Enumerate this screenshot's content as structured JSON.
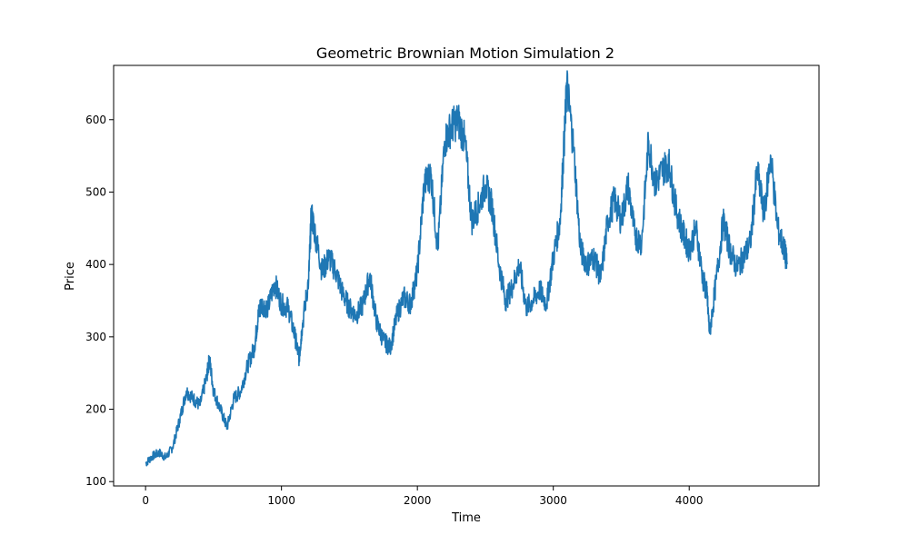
{
  "chart_data": {
    "type": "line",
    "title": "Geometric Brownian Motion Simulation 2",
    "xlabel": "Time",
    "ylabel": "Price",
    "xlim": [
      -235,
      4955
    ],
    "ylim": [
      94,
      675
    ],
    "xticks": [
      0,
      1000,
      2000,
      3000,
      4000
    ],
    "yticks": [
      100,
      200,
      300,
      400,
      500,
      600
    ],
    "grid": false,
    "series": [
      {
        "color": "#1f77b4",
        "x": [
          0,
          50,
          100,
          150,
          200,
          250,
          300,
          350,
          400,
          450,
          470,
          500,
          550,
          600,
          650,
          700,
          750,
          800,
          830,
          850,
          900,
          950,
          1000,
          1050,
          1100,
          1130,
          1150,
          1200,
          1220,
          1250,
          1300,
          1350,
          1400,
          1450,
          1500,
          1550,
          1600,
          1650,
          1700,
          1750,
          1800,
          1850,
          1900,
          1950,
          2000,
          2050,
          2100,
          2150,
          2200,
          2250,
          2300,
          2350,
          2400,
          2450,
          2500,
          2550,
          2600,
          2650,
          2700,
          2750,
          2800,
          2850,
          2900,
          2950,
          3000,
          3050,
          3080,
          3100,
          3150,
          3200,
          3250,
          3300,
          3350,
          3400,
          3450,
          3500,
          3550,
          3600,
          3650,
          3700,
          3750,
          3800,
          3850,
          3900,
          3950,
          4000,
          4050,
          4100,
          4130,
          4150,
          4200,
          4250,
          4300,
          4350,
          4400,
          4450,
          4500,
          4550,
          4600,
          4650,
          4700,
          4720
        ],
        "y": [
          125,
          135,
          140,
          133,
          148,
          185,
          225,
          215,
          205,
          245,
          270,
          225,
          200,
          175,
          215,
          225,
          260,
          285,
          330,
          345,
          340,
          375,
          345,
          340,
          300,
          270,
          310,
          380,
          470,
          440,
          390,
          410,
          390,
          360,
          340,
          330,
          345,
          385,
          320,
          295,
          285,
          330,
          355,
          345,
          390,
          510,
          525,
          420,
          570,
          590,
          600,
          570,
          460,
          480,
          510,
          480,
          400,
          350,
          370,
          400,
          340,
          350,
          365,
          345,
          410,
          460,
          570,
          650,
          560,
          420,
          400,
          410,
          380,
          460,
          490,
          460,
          510,
          440,
          430,
          570,
          510,
          530,
          540,
          480,
          445,
          420,
          450,
          380,
          360,
          305,
          380,
          460,
          420,
          395,
          410,
          430,
          530,
          470,
          550,
          450,
          420,
          400
        ]
      }
    ]
  }
}
